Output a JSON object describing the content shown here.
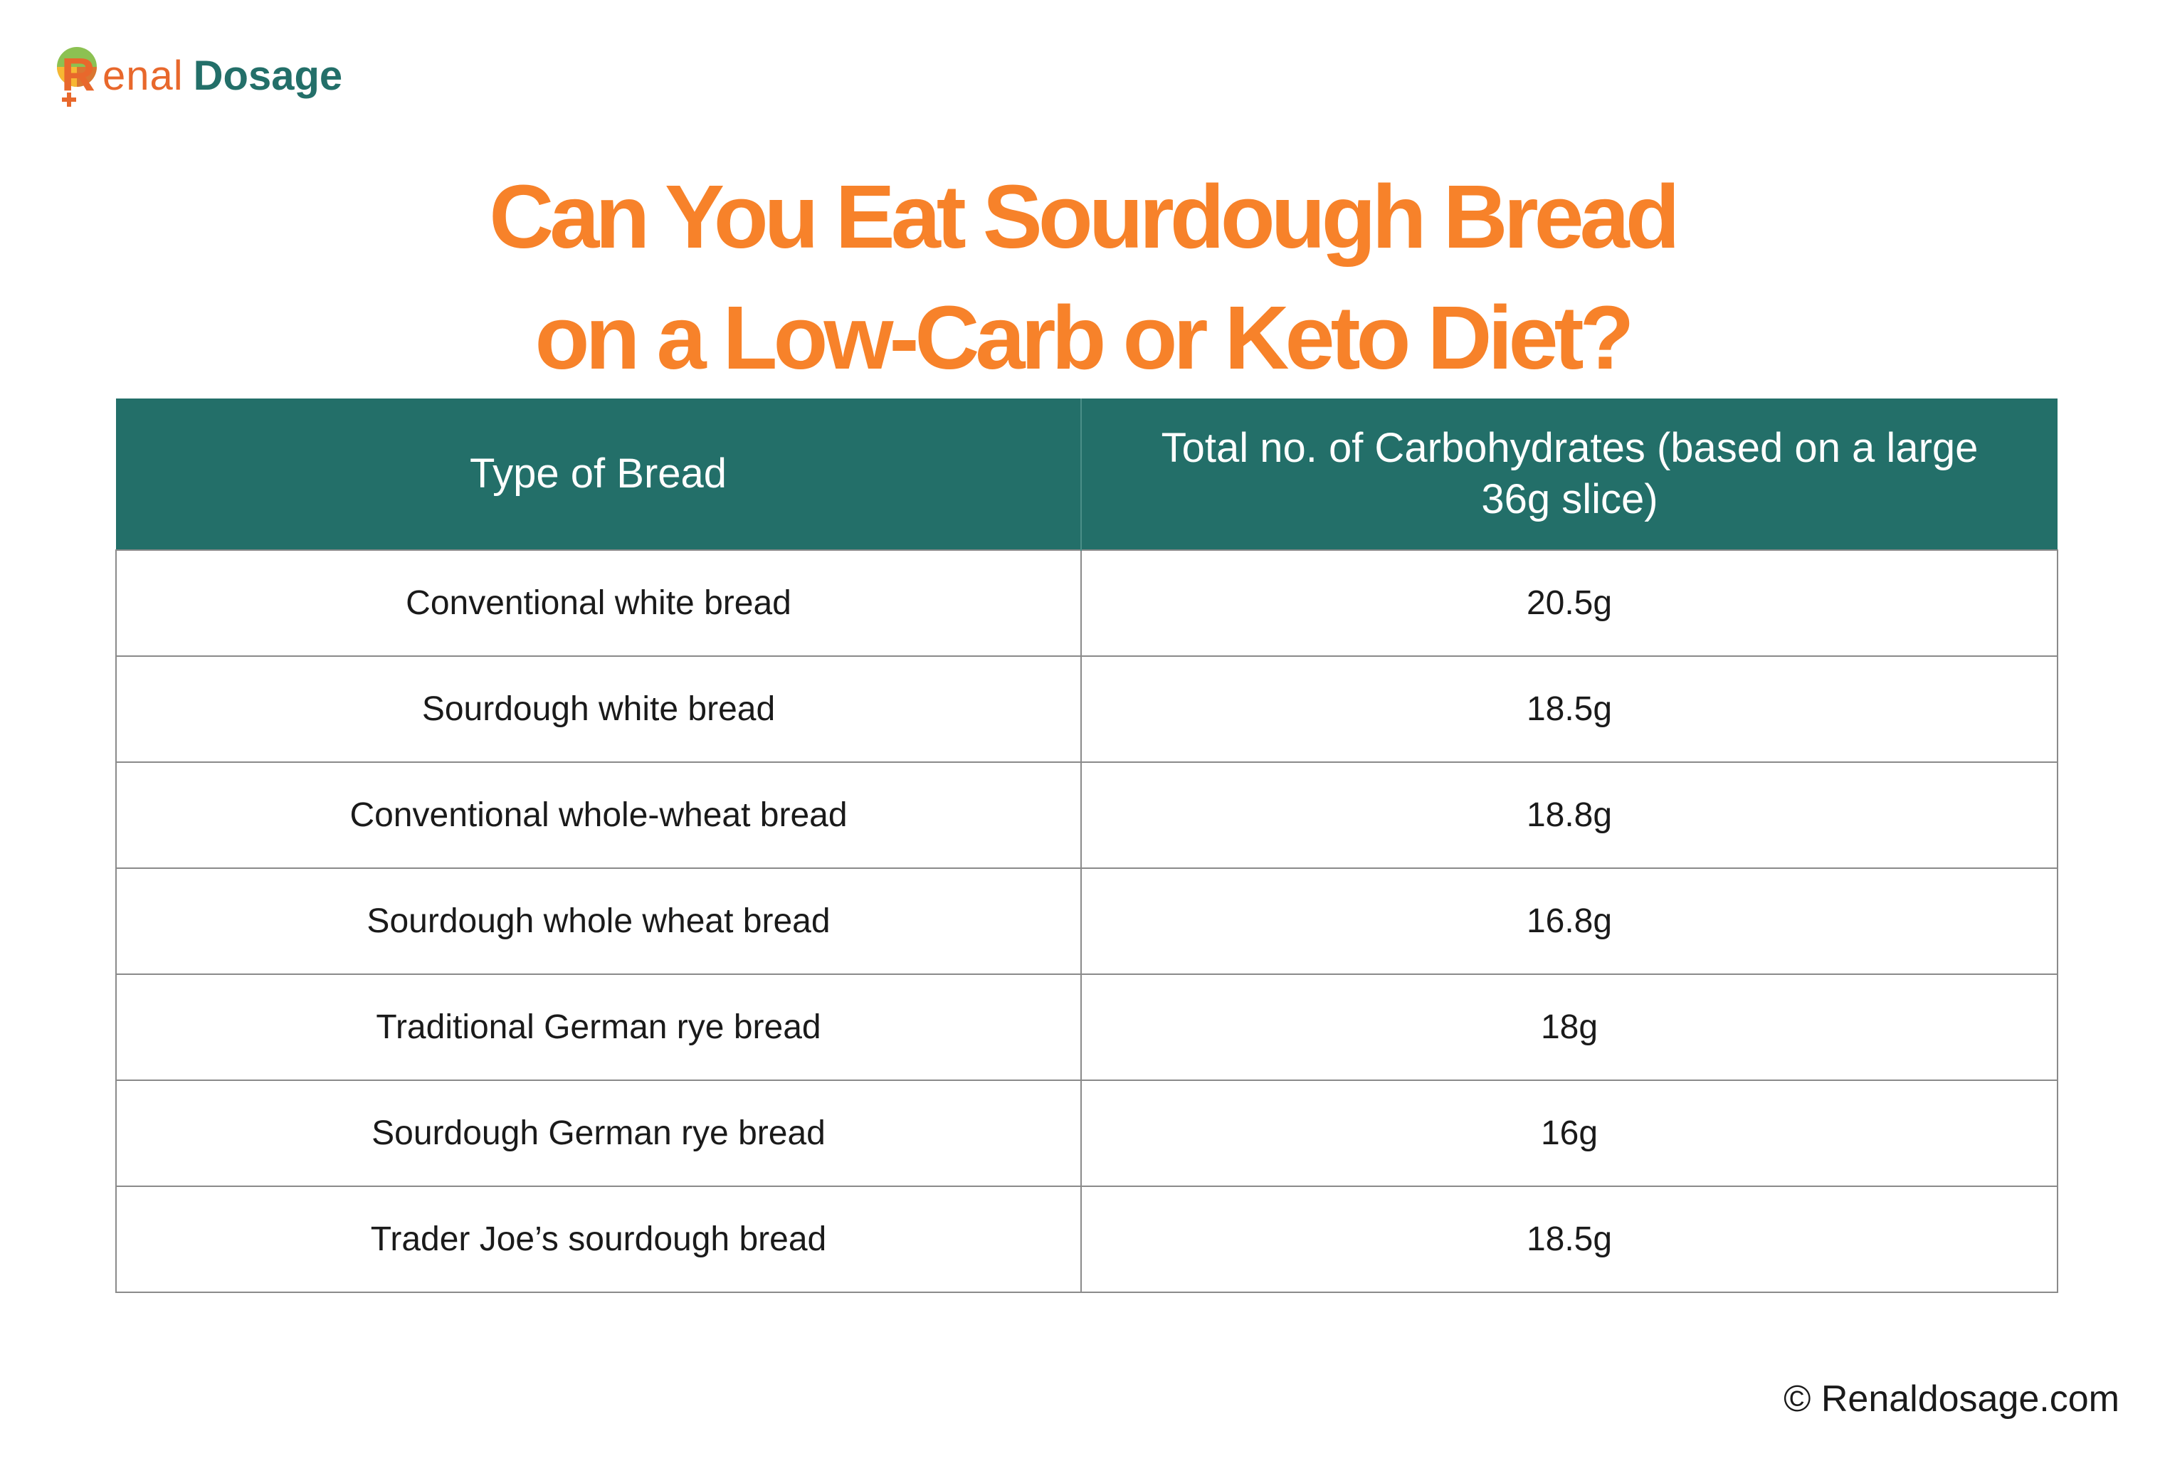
{
  "logo": {
    "brand_part1": "R",
    "brand_part2": "enal",
    "brand_part3": "Dosage"
  },
  "title": {
    "line1": "Can You Eat Sourdough Bread",
    "line2": "on a Low-Carb or Keto Diet?"
  },
  "table": {
    "headers": [
      "Type of Bread",
      "Total no. of Carbohydrates (based on a large 36g slice)"
    ],
    "rows": [
      {
        "type": "Conventional white bread",
        "carbs": "20.5g"
      },
      {
        "type": "Sourdough white bread",
        "carbs": "18.5g"
      },
      {
        "type": "Conventional whole-wheat bread",
        "carbs": "18.8g"
      },
      {
        "type": "Sourdough whole wheat bread",
        "carbs": "16.8g"
      },
      {
        "type": "Traditional German rye bread",
        "carbs": "18g"
      },
      {
        "type": "Sourdough German rye bread",
        "carbs": "16g"
      },
      {
        "type": "Trader Joe’s sourdough bread",
        "carbs": "18.5g"
      }
    ]
  },
  "footer": {
    "copyright": "© Renaldosage.com"
  },
  "colors": {
    "title": "#f7822a",
    "header_bg": "#236f69",
    "brand_orange": "#e8682c",
    "brand_green": "#236f69"
  }
}
